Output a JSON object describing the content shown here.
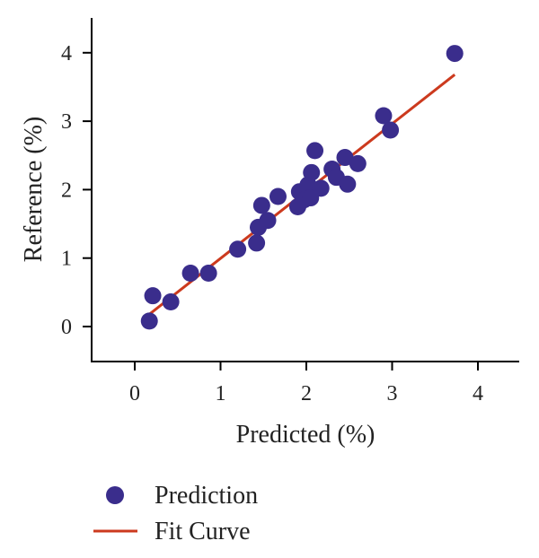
{
  "chart_data": {
    "type": "scatter",
    "xlabel": "Predicted (%)",
    "ylabel": "Reference (%)",
    "xlim": [
      -0.5,
      4.5
    ],
    "ylim": [
      -0.5,
      4.5
    ],
    "xticks": [
      0,
      1,
      2,
      3,
      4
    ],
    "yticks": [
      0,
      1,
      2,
      3,
      4
    ],
    "x_tick_labels": [
      "0",
      "1",
      "2",
      "3",
      "4"
    ],
    "y_tick_labels": [
      "0",
      "1",
      "2",
      "3",
      "4"
    ],
    "grid": false,
    "legend_position": "bottom-left",
    "series": [
      {
        "name": "Prediction",
        "kind": "scatter",
        "color": "#3a2d8c",
        "points": [
          {
            "x": 0.17,
            "y": 0.08
          },
          {
            "x": 0.21,
            "y": 0.45
          },
          {
            "x": 0.42,
            "y": 0.36
          },
          {
            "x": 0.65,
            "y": 0.78
          },
          {
            "x": 0.86,
            "y": 0.78
          },
          {
            "x": 1.2,
            "y": 1.13
          },
          {
            "x": 1.42,
            "y": 1.22
          },
          {
            "x": 1.44,
            "y": 1.45
          },
          {
            "x": 1.48,
            "y": 1.77
          },
          {
            "x": 1.55,
            "y": 1.55
          },
          {
            "x": 1.67,
            "y": 1.9
          },
          {
            "x": 1.9,
            "y": 1.75
          },
          {
            "x": 1.92,
            "y": 1.97
          },
          {
            "x": 1.97,
            "y": 1.85
          },
          {
            "x": 2.02,
            "y": 2.07
          },
          {
            "x": 2.05,
            "y": 1.88
          },
          {
            "x": 2.06,
            "y": 2.25
          },
          {
            "x": 2.1,
            "y": 2.57
          },
          {
            "x": 2.17,
            "y": 2.02
          },
          {
            "x": 2.3,
            "y": 2.3
          },
          {
            "x": 2.35,
            "y": 2.18
          },
          {
            "x": 2.45,
            "y": 2.47
          },
          {
            "x": 2.48,
            "y": 2.08
          },
          {
            "x": 2.6,
            "y": 2.38
          },
          {
            "x": 2.9,
            "y": 3.08
          },
          {
            "x": 2.98,
            "y": 2.87
          },
          {
            "x": 3.73,
            "y": 3.99
          }
        ]
      },
      {
        "name": "Fit Curve",
        "kind": "line",
        "color": "#cc3a1e",
        "x": [
          0.17,
          3.73
        ],
        "y": [
          0.18,
          3.68
        ]
      }
    ]
  }
}
